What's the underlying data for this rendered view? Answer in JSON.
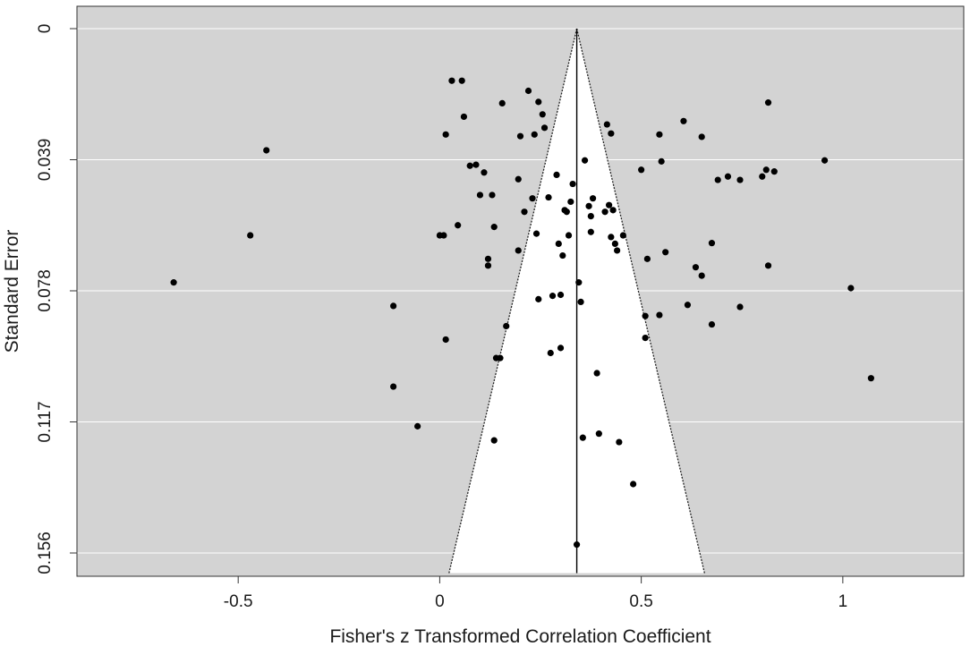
{
  "chart_data": {
    "type": "scatter",
    "subtype": "funnel-plot",
    "title": "",
    "xlabel": "Fisher's z Transformed Correlation Coefficient",
    "ylabel": "Standard Error",
    "xlim": [
      -0.9,
      1.3
    ],
    "ylim": [
      0,
      0.162
    ],
    "y_reversed": true,
    "x_ticks": [
      -0.5,
      0,
      0.5,
      1
    ],
    "x_tick_labels": [
      "-0.5",
      "0",
      "0.5",
      "1"
    ],
    "y_ticks": [
      0,
      0.039,
      0.078,
      0.117,
      0.156
    ],
    "y_tick_labels": [
      "0",
      "0.039",
      "0.078",
      "0.117",
      "0.156"
    ],
    "grid": "horizontal",
    "background_color": "#d3d3d3",
    "funnel_color": "#ffffff",
    "point_color": "#000000",
    "pooled_estimate": 0.34,
    "funnel_bottom_se": 0.162,
    "funnel_bottom_x": [
      0.023,
      0.657
    ],
    "points": [
      [
        -0.66,
        0.0755
      ],
      [
        -0.47,
        0.0615
      ],
      [
        -0.43,
        0.0362
      ],
      [
        -0.115,
        0.0825
      ],
      [
        -0.115,
        0.1065
      ],
      [
        -0.055,
        0.1183
      ],
      [
        0.0,
        0.0615
      ],
      [
        0.01,
        0.0615
      ],
      [
        0.015,
        0.0315
      ],
      [
        0.015,
        0.0925
      ],
      [
        0.03,
        0.0155
      ],
      [
        0.045,
        0.0585
      ],
      [
        0.055,
        0.0155
      ],
      [
        0.06,
        0.0262
      ],
      [
        0.075,
        0.0408
      ],
      [
        0.09,
        0.0405
      ],
      [
        0.1,
        0.0495
      ],
      [
        0.11,
        0.0428
      ],
      [
        0.12,
        0.0685
      ],
      [
        0.12,
        0.0705
      ],
      [
        0.13,
        0.0495
      ],
      [
        0.135,
        0.059
      ],
      [
        0.14,
        0.098
      ],
      [
        0.15,
        0.098
      ],
      [
        0.135,
        0.1225
      ],
      [
        0.155,
        0.0222
      ],
      [
        0.165,
        0.0885
      ],
      [
        0.195,
        0.0448
      ],
      [
        0.195,
        0.066
      ],
      [
        0.2,
        0.032
      ],
      [
        0.21,
        0.0545
      ],
      [
        0.22,
        0.0185
      ],
      [
        0.23,
        0.0505
      ],
      [
        0.235,
        0.0315
      ],
      [
        0.24,
        0.061
      ],
      [
        0.245,
        0.0218
      ],
      [
        0.255,
        0.0255
      ],
      [
        0.26,
        0.0295
      ],
      [
        0.245,
        0.0805
      ],
      [
        0.27,
        0.0502
      ],
      [
        0.28,
        0.0795
      ],
      [
        0.29,
        0.0435
      ],
      [
        0.295,
        0.064
      ],
      [
        0.3,
        0.0792
      ],
      [
        0.305,
        0.0675
      ],
      [
        0.31,
        0.054
      ],
      [
        0.315,
        0.0545
      ],
      [
        0.275,
        0.0965
      ],
      [
        0.3,
        0.095
      ],
      [
        0.32,
        0.0615
      ],
      [
        0.325,
        0.0515
      ],
      [
        0.33,
        0.0462
      ],
      [
        0.34,
        0.1535
      ],
      [
        0.345,
        0.0755
      ],
      [
        0.35,
        0.0813
      ],
      [
        0.355,
        0.1217
      ],
      [
        0.36,
        0.0392
      ],
      [
        0.37,
        0.0528
      ],
      [
        0.375,
        0.0558
      ],
      [
        0.375,
        0.0605
      ],
      [
        0.38,
        0.0505
      ],
      [
        0.39,
        0.1025
      ],
      [
        0.395,
        0.1205
      ],
      [
        0.41,
        0.0545
      ],
      [
        0.415,
        0.0285
      ],
      [
        0.42,
        0.0525
      ],
      [
        0.425,
        0.0312
      ],
      [
        0.425,
        0.062
      ],
      [
        0.43,
        0.054
      ],
      [
        0.435,
        0.064
      ],
      [
        0.44,
        0.066
      ],
      [
        0.445,
        0.123
      ],
      [
        0.455,
        0.0615
      ],
      [
        0.48,
        0.1355
      ],
      [
        0.5,
        0.042
      ],
      [
        0.51,
        0.0855
      ],
      [
        0.51,
        0.092
      ],
      [
        0.515,
        0.0685
      ],
      [
        0.545,
        0.0315
      ],
      [
        0.545,
        0.0852
      ],
      [
        0.55,
        0.0395
      ],
      [
        0.56,
        0.0665
      ],
      [
        0.605,
        0.0275
      ],
      [
        0.615,
        0.0822
      ],
      [
        0.635,
        0.071
      ],
      [
        0.65,
        0.0735
      ],
      [
        0.65,
        0.0322
      ],
      [
        0.675,
        0.0638
      ],
      [
        0.675,
        0.088
      ],
      [
        0.69,
        0.045
      ],
      [
        0.715,
        0.044
      ],
      [
        0.745,
        0.045
      ],
      [
        0.745,
        0.0828
      ],
      [
        0.8,
        0.044
      ],
      [
        0.81,
        0.042
      ],
      [
        0.815,
        0.0705
      ],
      [
        0.815,
        0.022
      ],
      [
        0.83,
        0.0425
      ],
      [
        0.955,
        0.0392
      ],
      [
        1.02,
        0.0772
      ],
      [
        1.07,
        0.104
      ]
    ]
  }
}
